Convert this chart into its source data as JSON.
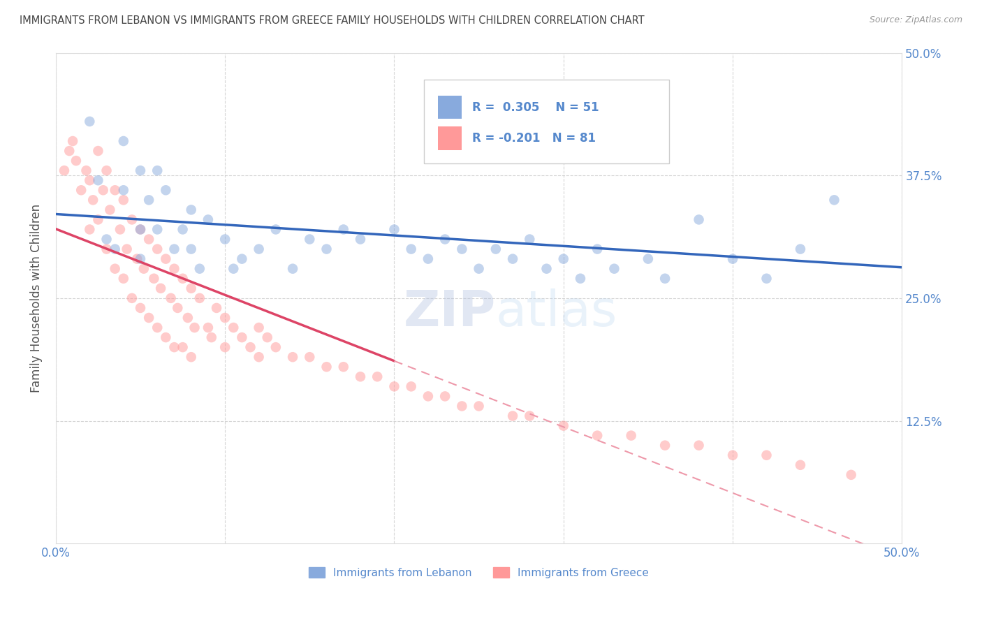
{
  "title": "IMMIGRANTS FROM LEBANON VS IMMIGRANTS FROM GREECE FAMILY HOUSEHOLDS WITH CHILDREN CORRELATION CHART",
  "source": "Source: ZipAtlas.com",
  "ylabel": "Family Households with Children",
  "xlim": [
    0.0,
    0.5
  ],
  "ylim": [
    0.0,
    0.5
  ],
  "legend_labels": [
    "Immigrants from Lebanon",
    "Immigrants from Greece"
  ],
  "R_lebanon": 0.305,
  "N_lebanon": 51,
  "R_greece": -0.201,
  "N_greece": 81,
  "blue_color": "#88AADD",
  "pink_color": "#FF9999",
  "blue_line_color": "#3366BB",
  "pink_line_color": "#DD4466",
  "pink_dash_color": "#EE99AA",
  "watermark_color": "#CCDDEE",
  "grid_color": "#CCCCCC",
  "title_color": "#444444",
  "axis_label_color": "#555555",
  "tick_color": "#5588CC",
  "lebanon_x": [
    0.02,
    0.025,
    0.03,
    0.035,
    0.04,
    0.04,
    0.05,
    0.05,
    0.05,
    0.055,
    0.06,
    0.06,
    0.065,
    0.07,
    0.075,
    0.08,
    0.08,
    0.085,
    0.09,
    0.1,
    0.105,
    0.11,
    0.12,
    0.13,
    0.14,
    0.15,
    0.16,
    0.17,
    0.18,
    0.2,
    0.21,
    0.22,
    0.23,
    0.24,
    0.25,
    0.26,
    0.27,
    0.28,
    0.29,
    0.3,
    0.31,
    0.32,
    0.33,
    0.34,
    0.35,
    0.36,
    0.38,
    0.4,
    0.42,
    0.44,
    0.46
  ],
  "lebanon_y": [
    0.43,
    0.37,
    0.31,
    0.3,
    0.41,
    0.36,
    0.38,
    0.32,
    0.29,
    0.35,
    0.38,
    0.32,
    0.36,
    0.3,
    0.32,
    0.34,
    0.3,
    0.28,
    0.33,
    0.31,
    0.28,
    0.29,
    0.3,
    0.32,
    0.28,
    0.31,
    0.3,
    0.32,
    0.31,
    0.32,
    0.3,
    0.29,
    0.31,
    0.3,
    0.28,
    0.3,
    0.29,
    0.31,
    0.28,
    0.29,
    0.27,
    0.3,
    0.28,
    0.42,
    0.29,
    0.27,
    0.33,
    0.29,
    0.27,
    0.3,
    0.35
  ],
  "greece_x": [
    0.005,
    0.008,
    0.01,
    0.012,
    0.015,
    0.018,
    0.02,
    0.02,
    0.022,
    0.025,
    0.025,
    0.028,
    0.03,
    0.03,
    0.032,
    0.035,
    0.035,
    0.038,
    0.04,
    0.04,
    0.042,
    0.045,
    0.045,
    0.048,
    0.05,
    0.05,
    0.052,
    0.055,
    0.055,
    0.058,
    0.06,
    0.06,
    0.062,
    0.065,
    0.065,
    0.068,
    0.07,
    0.07,
    0.072,
    0.075,
    0.075,
    0.078,
    0.08,
    0.08,
    0.082,
    0.085,
    0.09,
    0.092,
    0.095,
    0.1,
    0.1,
    0.105,
    0.11,
    0.115,
    0.12,
    0.12,
    0.125,
    0.13,
    0.14,
    0.15,
    0.16,
    0.17,
    0.18,
    0.19,
    0.2,
    0.21,
    0.22,
    0.23,
    0.24,
    0.25,
    0.27,
    0.28,
    0.3,
    0.32,
    0.34,
    0.36,
    0.38,
    0.4,
    0.42,
    0.44,
    0.47
  ],
  "greece_y": [
    0.38,
    0.4,
    0.41,
    0.39,
    0.36,
    0.38,
    0.37,
    0.32,
    0.35,
    0.4,
    0.33,
    0.36,
    0.38,
    0.3,
    0.34,
    0.36,
    0.28,
    0.32,
    0.35,
    0.27,
    0.3,
    0.33,
    0.25,
    0.29,
    0.32,
    0.24,
    0.28,
    0.31,
    0.23,
    0.27,
    0.3,
    0.22,
    0.26,
    0.29,
    0.21,
    0.25,
    0.28,
    0.2,
    0.24,
    0.27,
    0.2,
    0.23,
    0.26,
    0.19,
    0.22,
    0.25,
    0.22,
    0.21,
    0.24,
    0.23,
    0.2,
    0.22,
    0.21,
    0.2,
    0.22,
    0.19,
    0.21,
    0.2,
    0.19,
    0.19,
    0.18,
    0.18,
    0.17,
    0.17,
    0.16,
    0.16,
    0.15,
    0.15,
    0.14,
    0.14,
    0.13,
    0.13,
    0.12,
    0.11,
    0.11,
    0.1,
    0.1,
    0.09,
    0.09,
    0.08,
    0.07
  ]
}
